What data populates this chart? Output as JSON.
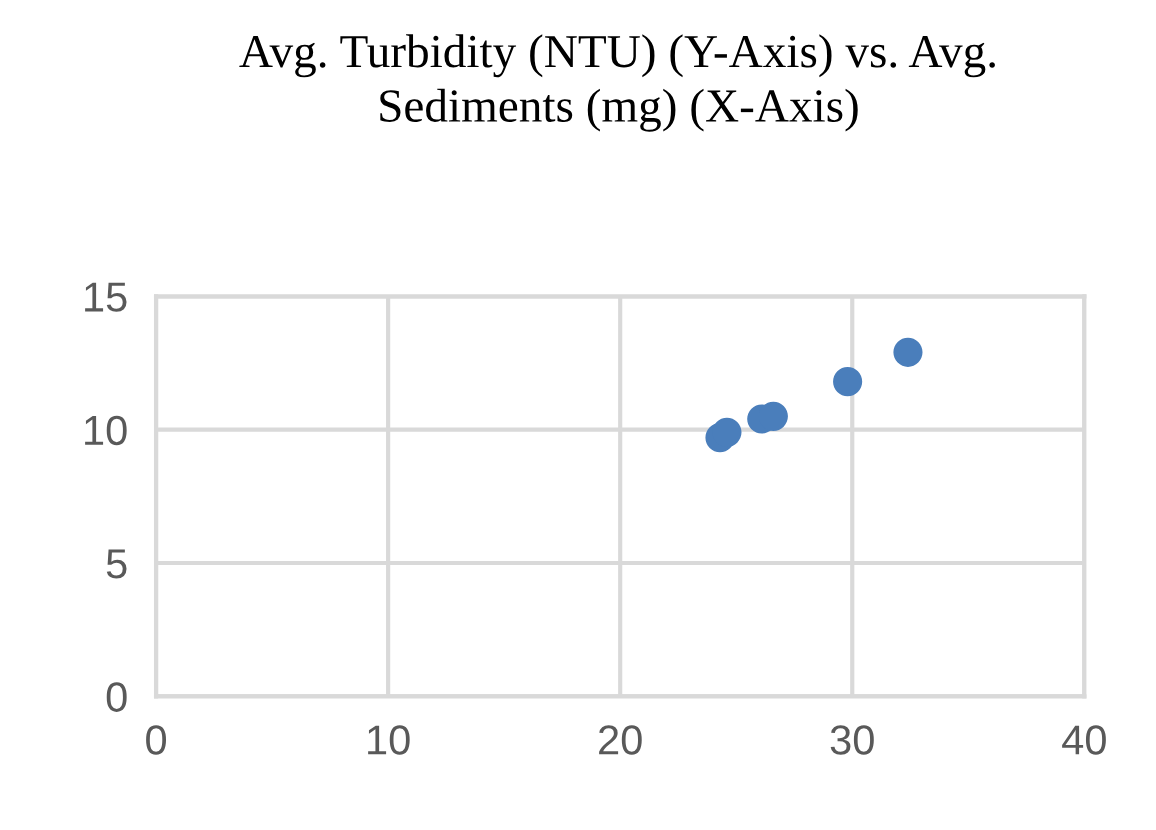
{
  "chart_data": {
    "type": "scatter",
    "title": "Avg. Turbidity (NTU) (Y-Axis) vs. Avg.\nSediments (mg) (X-Axis)",
    "x": [
      24.3,
      24.6,
      26.1,
      26.6,
      29.8,
      32.4
    ],
    "series": [
      {
        "color": "#4a7ebb",
        "values": [
          9.7,
          9.9,
          10.4,
          10.5,
          11.8,
          12.9
        ]
      }
    ],
    "xlim": [
      0,
      40
    ],
    "xticks": [
      0,
      10,
      20,
      30,
      40
    ],
    "ylim": [
      0,
      15
    ],
    "yticks": [
      0,
      5,
      10,
      15
    ],
    "grid": true,
    "marker": "circle",
    "legend": false
  }
}
